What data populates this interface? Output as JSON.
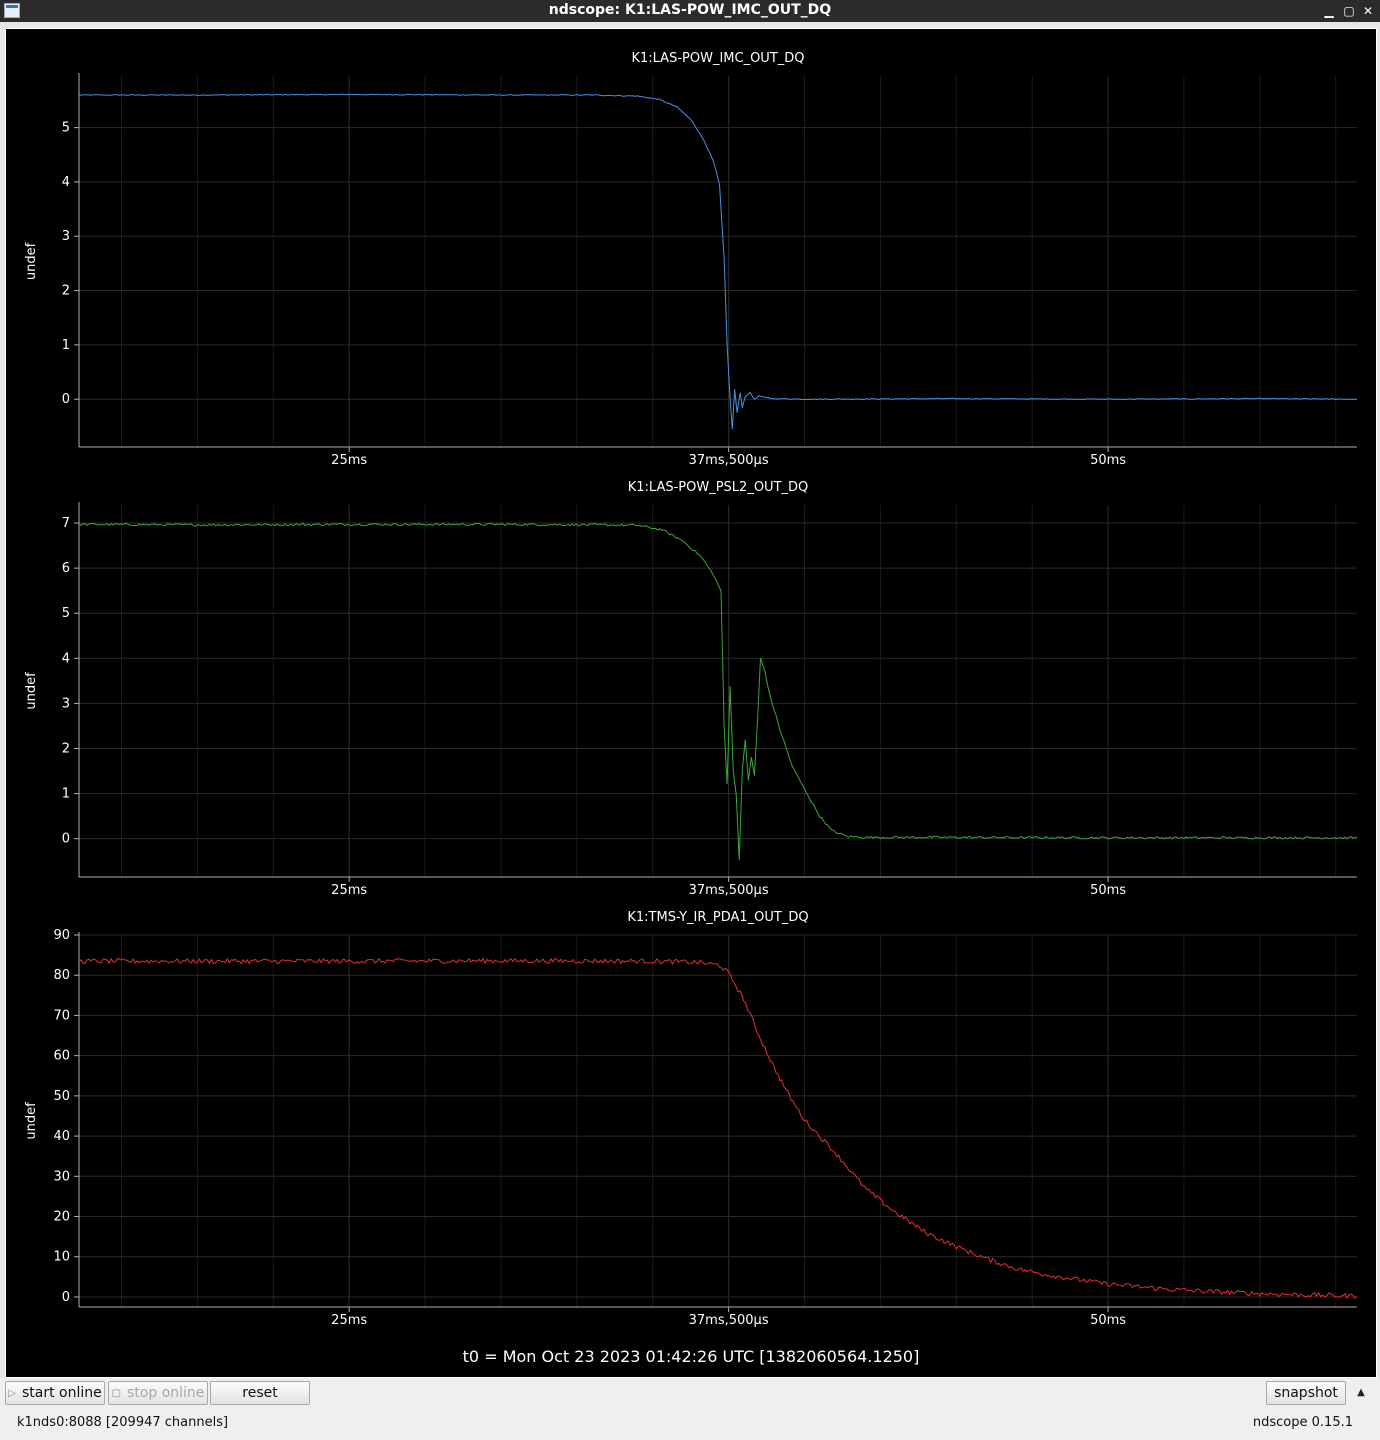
{
  "window": {
    "title": "ndscope: K1:LAS-POW_IMC_OUT_DQ",
    "minimize_glyph": "▁",
    "maximize_glyph": "▢",
    "close_glyph": "✕"
  },
  "colors": {
    "background": "#000000",
    "grid": "#2a2a2a",
    "axis": "#b0b0b0",
    "text": "#ffffff"
  },
  "t0_label": "t0 = Mon Oct 23 2023 01:42:26 UTC [1382060564.1250]",
  "toolbar": {
    "start_online_label": "start online",
    "stop_online_label": "stop online",
    "reset_label": "reset",
    "snapshot_label": "snapshot",
    "play_icon": "▷",
    "stop_icon": "▢",
    "expand_icon": "▲"
  },
  "status": {
    "server": "k1nds0:8088  [209947 channels]",
    "version": "ndscope 0.15.1"
  },
  "chart_data": [
    {
      "type": "line",
      "title": "K1:LAS-POW_IMC_OUT_DQ",
      "ylabel": "undef",
      "color": "#4a90e2",
      "xlim": [
        16.1,
        58.2
      ],
      "ylim": [
        -0.88,
        5.95
      ],
      "yticks": [
        0,
        1,
        2,
        3,
        4,
        5
      ],
      "xticks": [
        {
          "v": 25,
          "label": "25ms"
        },
        {
          "v": 37.5,
          "label": "37ms,500µs"
        },
        {
          "v": 50,
          "label": "50ms"
        }
      ],
      "x": [
        16.1,
        20,
        25,
        30,
        33,
        34.5,
        35.2,
        35.8,
        36.3,
        36.7,
        37.0,
        37.2,
        37.35,
        37.45,
        37.55,
        37.62,
        37.7,
        37.78,
        37.88,
        37.95,
        38.05,
        38.2,
        38.35,
        38.5,
        38.7,
        39.0,
        40,
        45,
        50,
        55,
        58.2
      ],
      "y": [
        5.6,
        5.6,
        5.61,
        5.6,
        5.6,
        5.58,
        5.52,
        5.38,
        5.12,
        4.75,
        4.38,
        3.95,
        2.6,
        1.0,
        0.0,
        -0.55,
        0.18,
        -0.25,
        0.12,
        -0.15,
        0.05,
        0.12,
        0.0,
        0.06,
        0.03,
        0.01,
        0.0,
        0.01,
        0.0,
        0.01,
        0.0
      ],
      "noise": 0.008
    },
    {
      "type": "line",
      "title": "K1:LAS-POW_PSL2_OUT_DQ",
      "ylabel": "undef",
      "color": "#3aa83a",
      "xlim": [
        16.1,
        58.2
      ],
      "ylim": [
        -0.85,
        7.4
      ],
      "yticks": [
        0,
        1,
        2,
        3,
        4,
        5,
        6,
        7
      ],
      "xticks": [
        {
          "v": 25,
          "label": "25ms"
        },
        {
          "v": 37.5,
          "label": "37ms,500µs"
        },
        {
          "v": 50,
          "label": "50ms"
        }
      ],
      "x": [
        16.1,
        20,
        25,
        30,
        33,
        34.5,
        35.3,
        36.0,
        36.6,
        37.0,
        37.25,
        37.35,
        37.45,
        37.55,
        37.65,
        37.75,
        37.85,
        37.95,
        38.05,
        38.15,
        38.25,
        38.35,
        38.45,
        38.55,
        38.7,
        38.85,
        39.2,
        39.6,
        40.0,
        40.5,
        40.9,
        41.4,
        42.0,
        43,
        45,
        50,
        55,
        58.2
      ],
      "y": [
        6.97,
        6.96,
        6.97,
        6.97,
        6.96,
        6.95,
        6.85,
        6.6,
        6.25,
        5.85,
        5.5,
        2.5,
        1.2,
        3.4,
        1.5,
        1.0,
        -0.45,
        1.5,
        2.2,
        1.3,
        1.8,
        1.4,
        2.6,
        4.0,
        3.7,
        3.2,
        2.4,
        1.6,
        1.1,
        0.5,
        0.18,
        0.05,
        0.03,
        0.03,
        0.03,
        0.02,
        0.02,
        0.02
      ],
      "noise": 0.025
    },
    {
      "type": "line",
      "title": "K1:TMS-Y_IR_PDA1_OUT_DQ",
      "ylabel": "undef",
      "color": "#e03030",
      "xlim": [
        16.1,
        58.2
      ],
      "ylim": [
        -2.5,
        90
      ],
      "yticks": [
        0,
        10,
        20,
        30,
        40,
        50,
        60,
        70,
        80,
        90
      ],
      "xticks": [
        {
          "v": 25,
          "label": "25ms"
        },
        {
          "v": 37.5,
          "label": "37ms,500µs"
        },
        {
          "v": 50,
          "label": "50ms"
        }
      ],
      "x": [
        16.1,
        20,
        25,
        30,
        35,
        36.5,
        37.2,
        37.5,
        38.0,
        38.5,
        39.0,
        39.5,
        40.0,
        41,
        42,
        43,
        44,
        45,
        46,
        47,
        48,
        50,
        52,
        54,
        56,
        58.2
      ],
      "y": [
        83.5,
        83.5,
        83.5,
        83.6,
        83.5,
        83.2,
        82.5,
        80.5,
        74,
        65,
        57,
        50,
        44,
        36,
        27,
        21,
        16,
        12.5,
        9.5,
        7,
        5.5,
        3.2,
        1.9,
        1.1,
        0.6,
        0.2
      ],
      "noise": 0.6
    }
  ]
}
